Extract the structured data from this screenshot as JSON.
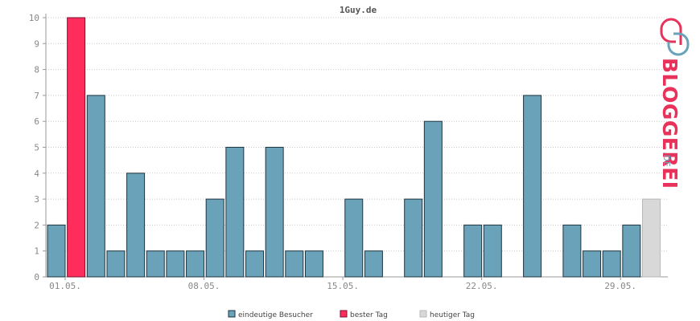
{
  "chart_data": {
    "type": "bar",
    "title": "1Guy.de",
    "ylim": [
      0,
      10
    ],
    "yticks": [
      0,
      1,
      2,
      3,
      4,
      5,
      6,
      7,
      8,
      9,
      10
    ],
    "x_tick_labels": [
      {
        "day": 1,
        "label": "01.05."
      },
      {
        "day": 8,
        "label": "08.05."
      },
      {
        "day": 15,
        "label": "15.05."
      },
      {
        "day": 22,
        "label": "22.05."
      },
      {
        "day": 29,
        "label": "29.05."
      }
    ],
    "days": [
      1,
      2,
      3,
      4,
      5,
      6,
      7,
      8,
      9,
      10,
      11,
      12,
      13,
      14,
      15,
      16,
      17,
      18,
      19,
      20,
      21,
      22,
      23,
      24,
      25,
      26,
      27,
      28,
      29,
      30,
      31
    ],
    "values": [
      2,
      10,
      7,
      1,
      4,
      1,
      1,
      1,
      3,
      5,
      1,
      5,
      1,
      1,
      0,
      3,
      1,
      0,
      3,
      6,
      0,
      2,
      2,
      0,
      7,
      0,
      2,
      1,
      1,
      2,
      3
    ],
    "best_day": 2,
    "today": 31,
    "grid": true,
    "legend_position": "bottom-center",
    "series": [
      {
        "name": "eindeutige Besucher",
        "color": "#6aa2b9"
      },
      {
        "name": "bester Tag",
        "color": "#ff2d5c"
      },
      {
        "name": "heutiger Tag",
        "color": "#d8d8d8"
      }
    ]
  },
  "brand": {
    "name": "BLOGGEREI",
    "suffix": ".DE",
    "logo_icon": "bloggerei-logo-icon",
    "colors": {
      "primary": "#e8325a",
      "secondary": "#6aa2b9"
    }
  }
}
